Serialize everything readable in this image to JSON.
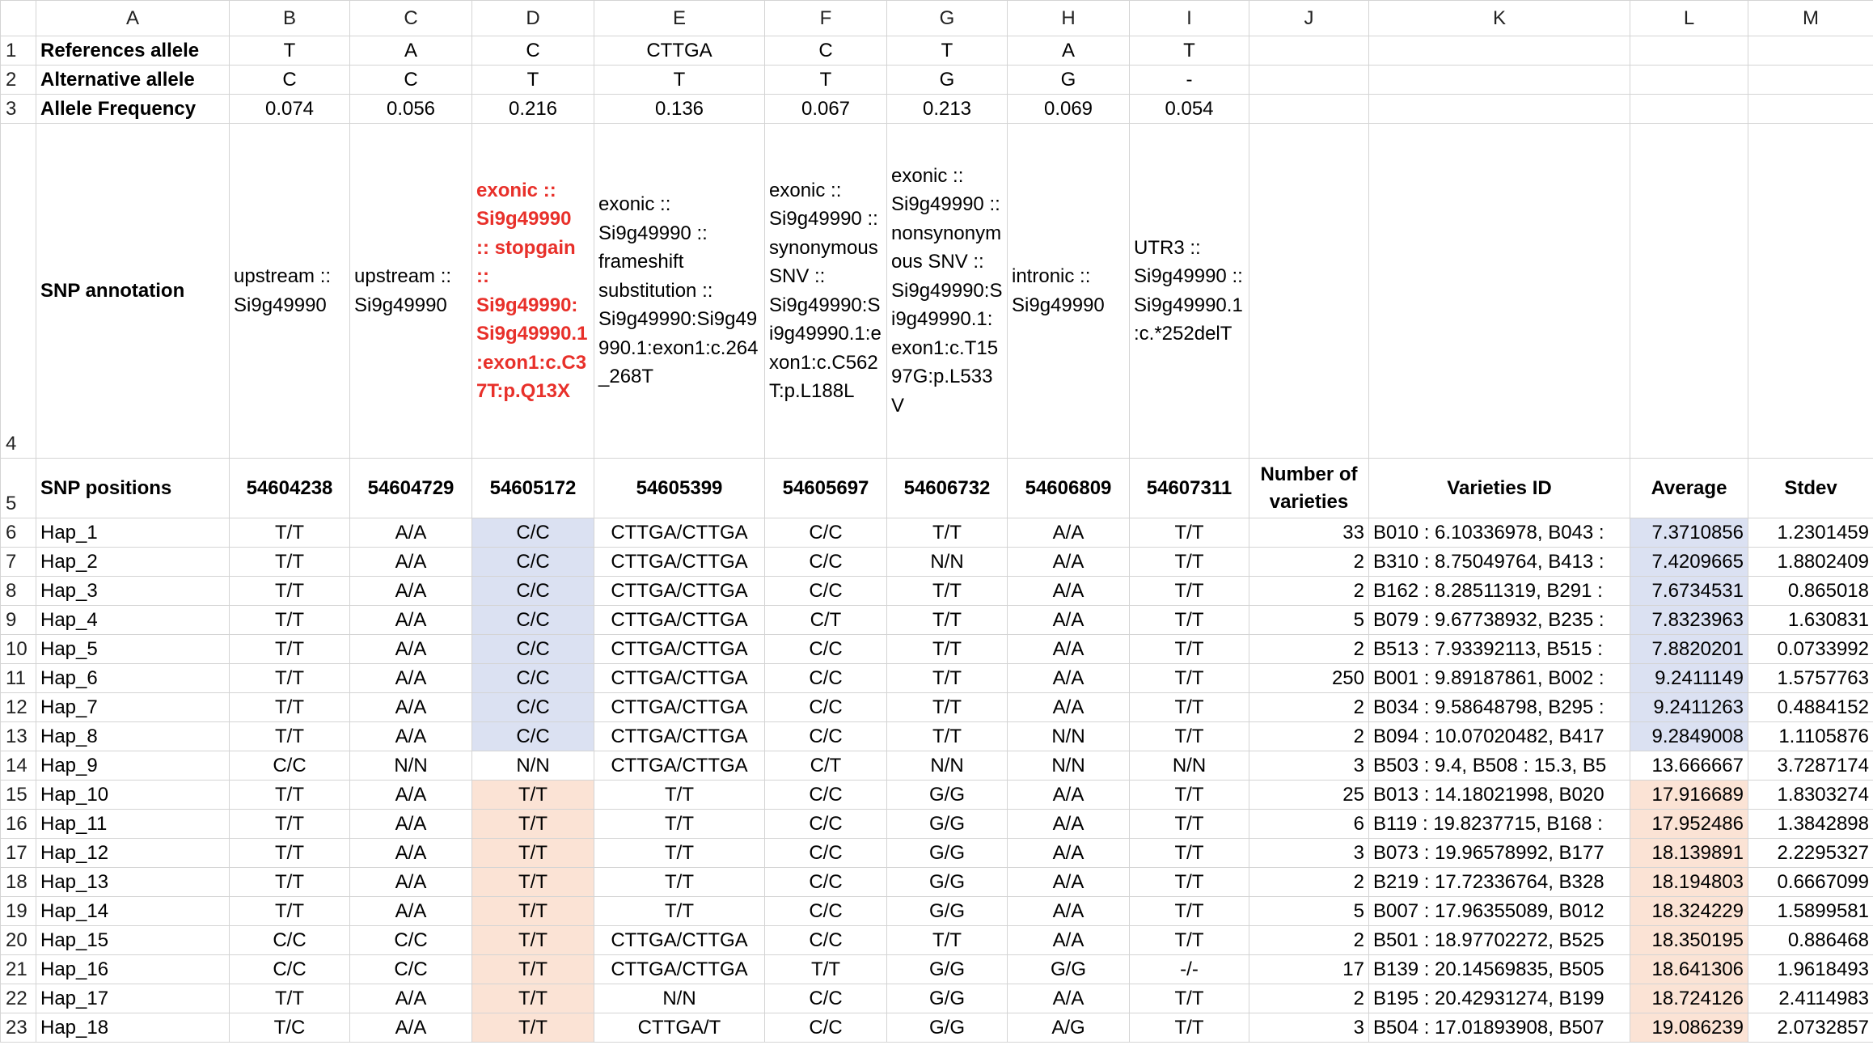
{
  "columns": [
    "A",
    "B",
    "C",
    "D",
    "E",
    "F",
    "G",
    "H",
    "I",
    "J",
    "K",
    "L",
    "M"
  ],
  "rows": [
    {
      "number": 1,
      "cells": [
        "References allele",
        "T",
        "A",
        "C",
        "CTTGA",
        "C",
        "T",
        "A",
        "T",
        null,
        null,
        null,
        null
      ]
    },
    {
      "number": 2,
      "cells": [
        "Alternative allele",
        "C",
        "C",
        "T",
        "T",
        "T",
        "G",
        "G",
        "-",
        null,
        null,
        null,
        null
      ]
    },
    {
      "number": 3,
      "cells": [
        "Allele Frequency",
        "0.074",
        "0.056",
        "0.216",
        "0.136",
        "0.067",
        "0.213",
        "0.069",
        "0.054",
        null,
        null,
        null,
        null
      ]
    },
    {
      "number": 4,
      "cells": [
        "SNP annotation",
        "upstream :: Si9g49990",
        "upstream :: Si9g49990",
        "exonic :: Si9g49990 :: stopgain :: Si9g49990:Si9g49990.1:exon1:c.C37T:p.Q13X",
        "exonic :: Si9g49990 :: frameshift substitution :: Si9g49990:Si9g49990.1:exon1:c.264_268T",
        "exonic :: Si9g49990 :: synonymous SNV :: Si9g49990:Si9g49990.1:exon1:c.C562T:p.L188L",
        "exonic :: Si9g49990 :: nonsynonymous SNV :: Si9g49990:Si9g49990.1:exon1:c.T1597G:p.L533V",
        "intronic :: Si9g49990",
        "UTR3 :: Si9g49990 :: Si9g49990.1:c.*252delT",
        null,
        null,
        null,
        null
      ]
    },
    {
      "number": 5,
      "cells": [
        "SNP positions",
        "54604238",
        "54604729",
        "54605172",
        "54605399",
        "54605697",
        "54606732",
        "54606809",
        "54607311",
        "Number of varieties",
        "Varieties ID",
        "Average",
        "Stdev"
      ]
    },
    {
      "number": 6,
      "cells": [
        "Hap_1",
        "T/T",
        "A/A",
        "C/C",
        "CTTGA/CTTGA",
        "C/C",
        "T/T",
        "A/A",
        "T/T",
        "33",
        "B010 : 6.10336978, B043 :",
        "7.3710856",
        "1.2301459"
      ]
    },
    {
      "number": 7,
      "cells": [
        "Hap_2",
        "T/T",
        "A/A",
        "C/C",
        "CTTGA/CTTGA",
        "C/C",
        "N/N",
        "A/A",
        "T/T",
        "2",
        "B310 : 8.75049764, B413 :",
        "7.4209665",
        "1.8802409"
      ]
    },
    {
      "number": 8,
      "cells": [
        "Hap_3",
        "T/T",
        "A/A",
        "C/C",
        "CTTGA/CTTGA",
        "C/C",
        "T/T",
        "A/A",
        "T/T",
        "2",
        "B162 : 8.28511319, B291 :",
        "7.6734531",
        "0.865018"
      ]
    },
    {
      "number": 9,
      "cells": [
        "Hap_4",
        "T/T",
        "A/A",
        "C/C",
        "CTTGA/CTTGA",
        "C/T",
        "T/T",
        "A/A",
        "T/T",
        "5",
        "B079 : 9.67738932, B235 :",
        "7.8323963",
        "1.630831"
      ]
    },
    {
      "number": 10,
      "cells": [
        "Hap_5",
        "T/T",
        "A/A",
        "C/C",
        "CTTGA/CTTGA",
        "C/C",
        "T/T",
        "A/A",
        "T/T",
        "2",
        "B513 : 7.93392113, B515 :",
        "7.8820201",
        "0.0733992"
      ]
    },
    {
      "number": 11,
      "cells": [
        "Hap_6",
        "T/T",
        "A/A",
        "C/C",
        "CTTGA/CTTGA",
        "C/C",
        "T/T",
        "A/A",
        "T/T",
        "250",
        "B001 : 9.89187861, B002 :",
        "9.2411149",
        "1.5757763"
      ]
    },
    {
      "number": 12,
      "cells": [
        "Hap_7",
        "T/T",
        "A/A",
        "C/C",
        "CTTGA/CTTGA",
        "C/C",
        "T/T",
        "A/A",
        "T/T",
        "2",
        "B034 : 9.58648798, B295 :",
        "9.2411263",
        "0.4884152"
      ]
    },
    {
      "number": 13,
      "cells": [
        "Hap_8",
        "T/T",
        "A/A",
        "C/C",
        "CTTGA/CTTGA",
        "C/C",
        "T/T",
        "N/N",
        "T/T",
        "2",
        "B094 : 10.07020482, B417",
        "9.2849008",
        "1.1105876"
      ]
    },
    {
      "number": 14,
      "cells": [
        "Hap_9",
        "C/C",
        "N/N",
        "N/N",
        "CTTGA/CTTGA",
        "C/T",
        "N/N",
        "N/N",
        "N/N",
        "3",
        "B503 : 9.4, B508 : 15.3, B5",
        "13.666667",
        "3.7287174"
      ]
    },
    {
      "number": 15,
      "cells": [
        "Hap_10",
        "T/T",
        "A/A",
        "T/T",
        "T/T",
        "C/C",
        "G/G",
        "A/A",
        "T/T",
        "25",
        "B013 : 14.18021998, B020",
        "17.916689",
        "1.8303274"
      ]
    },
    {
      "number": 16,
      "cells": [
        "Hap_11",
        "T/T",
        "A/A",
        "T/T",
        "T/T",
        "C/C",
        "G/G",
        "A/A",
        "T/T",
        "6",
        "B119 : 19.8237715, B168 :",
        "17.952486",
        "1.3842898"
      ]
    },
    {
      "number": 17,
      "cells": [
        "Hap_12",
        "T/T",
        "A/A",
        "T/T",
        "T/T",
        "C/C",
        "G/G",
        "A/A",
        "T/T",
        "3",
        "B073 : 19.96578992, B177",
        "18.139891",
        "2.2295327"
      ]
    },
    {
      "number": 18,
      "cells": [
        "Hap_13",
        "T/T",
        "A/A",
        "T/T",
        "T/T",
        "C/C",
        "G/G",
        "A/A",
        "T/T",
        "2",
        "B219 : 17.72336764, B328",
        "18.194803",
        "0.6667099"
      ]
    },
    {
      "number": 19,
      "cells": [
        "Hap_14",
        "T/T",
        "A/A",
        "T/T",
        "T/T",
        "C/C",
        "G/G",
        "A/A",
        "T/T",
        "5",
        "B007 : 17.96355089, B012",
        "18.324229",
        "1.5899581"
      ]
    },
    {
      "number": 20,
      "cells": [
        "Hap_15",
        "C/C",
        "C/C",
        "T/T",
        "CTTGA/CTTGA",
        "C/C",
        "T/T",
        "A/A",
        "T/T",
        "2",
        "B501 : 18.97702272, B525",
        "18.350195",
        "0.886468"
      ]
    },
    {
      "number": 21,
      "cells": [
        "Hap_16",
        "C/C",
        "C/C",
        "T/T",
        "CTTGA/CTTGA",
        "T/T",
        "G/G",
        "G/G",
        "-/-",
        "17",
        "B139 : 20.14569835, B505",
        "18.641306",
        "1.9618493"
      ]
    },
    {
      "number": 22,
      "cells": [
        "Hap_17",
        "T/T",
        "A/A",
        "T/T",
        "N/N",
        "C/C",
        "G/G",
        "A/A",
        "T/T",
        "2",
        "B195 : 20.42931274, B199",
        "18.724126",
        "2.4114983"
      ]
    },
    {
      "number": 23,
      "cells": [
        "Hap_18",
        "T/C",
        "A/A",
        "T/T",
        "CTTGA/T",
        "C/C",
        "G/G",
        "A/G",
        "T/T",
        "3",
        "B504 : 17.01893908, B507",
        "19.086239",
        "2.0732857"
      ]
    }
  ]
}
